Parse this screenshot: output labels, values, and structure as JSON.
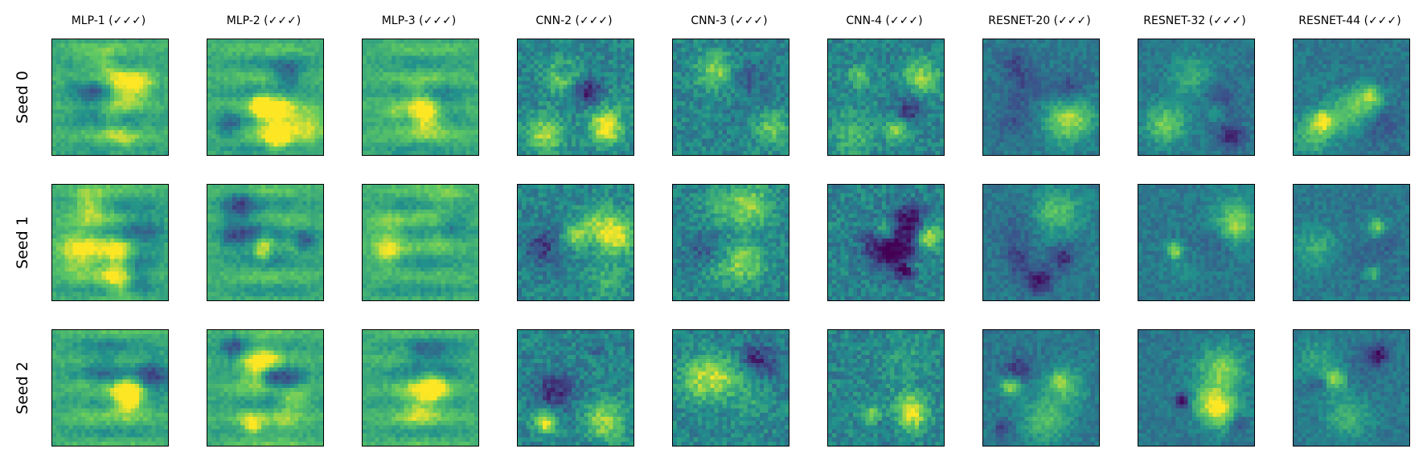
{
  "figure": {
    "columns": [
      {
        "title": "MLP-1 (✓✓✓)"
      },
      {
        "title": "MLP-2 (✓✓✓)"
      },
      {
        "title": "MLP-3 (✓✓✓)"
      },
      {
        "title": "CNN-2 (✓✓✓)"
      },
      {
        "title": "CNN-3 (✓✓✓)"
      },
      {
        "title": "CNN-4 (✓✓✓)"
      },
      {
        "title": "RESNET-20 (✓✓✓)"
      },
      {
        "title": "RESNET-32 (✓✓✓)"
      },
      {
        "title": "RESNET-44 (✓✓✓)"
      }
    ],
    "rows": [
      {
        "label": "Seed 0"
      },
      {
        "label": "Seed 1"
      },
      {
        "label": "Seed 2"
      }
    ],
    "colormap": {
      "name": "viridis",
      "stops": [
        "#440154",
        "#3b528b",
        "#21918c",
        "#5ec962",
        "#fde725"
      ]
    }
  }
}
